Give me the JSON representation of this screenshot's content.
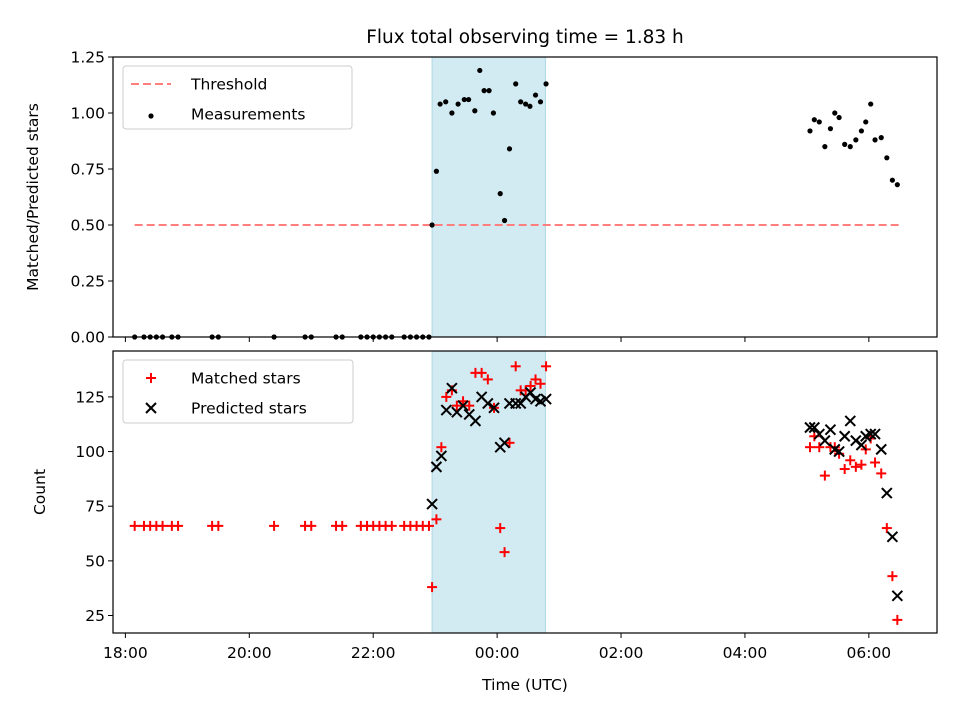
{
  "figure": {
    "title": "Flux total observing time = 1.83 h",
    "xlabel": "Time (UTC)"
  },
  "chart_data": [
    {
      "type": "scatter",
      "panel": "top",
      "ylabel": "Matched/Predicted stars",
      "xlim_hours": [
        -6.2,
        7.1
      ],
      "ylim": [
        0,
        1.25
      ],
      "yticks": [
        0.0,
        0.25,
        0.5,
        0.75,
        1.0,
        1.25
      ],
      "ytick_labels": [
        "0.00",
        "0.25",
        "0.50",
        "0.75",
        "1.00",
        "1.25"
      ],
      "legend": {
        "placement": "top-left",
        "entries": [
          "Threshold",
          "Measurements"
        ]
      },
      "threshold": {
        "name": "Threshold",
        "value": 0.5,
        "x_range_hours": [
          -5.85,
          6.5
        ],
        "color": "#ff7f7f"
      },
      "shaded_interval_hours": [
        -1.05,
        0.78
      ],
      "shade_color": "#add8e6",
      "series": [
        {
          "name": "Measurements",
          "color": "#000000",
          "marker": "dot",
          "points": [
            [
              -5.85,
              0
            ],
            [
              -5.7,
              0
            ],
            [
              -5.6,
              0
            ],
            [
              -5.5,
              0
            ],
            [
              -5.4,
              0
            ],
            [
              -5.25,
              0
            ],
            [
              -5.15,
              0
            ],
            [
              -4.6,
              0
            ],
            [
              -4.5,
              0
            ],
            [
              -3.6,
              0
            ],
            [
              -3.1,
              0
            ],
            [
              -3.0,
              0
            ],
            [
              -2.6,
              0
            ],
            [
              -2.5,
              0
            ],
            [
              -2.2,
              0
            ],
            [
              -2.1,
              0
            ],
            [
              -2.0,
              0
            ],
            [
              -1.9,
              0
            ],
            [
              -1.8,
              0
            ],
            [
              -1.7,
              0
            ],
            [
              -1.5,
              0
            ],
            [
              -1.4,
              0
            ],
            [
              -1.3,
              0
            ],
            [
              -1.2,
              0
            ],
            [
              -1.1,
              0
            ],
            [
              -1.05,
              0.5
            ],
            [
              -0.98,
              0.74
            ],
            [
              -0.92,
              1.04
            ],
            [
              -0.83,
              1.05
            ],
            [
              -0.73,
              1.0
            ],
            [
              -0.63,
              1.04
            ],
            [
              -0.53,
              1.06
            ],
            [
              -0.46,
              1.06
            ],
            [
              -0.36,
              1.01
            ],
            [
              -0.28,
              1.19
            ],
            [
              -0.21,
              1.1
            ],
            [
              -0.13,
              1.1
            ],
            [
              -0.06,
              1.0
            ],
            [
              0.05,
              0.64
            ],
            [
              0.12,
              0.52
            ],
            [
              0.2,
              0.84
            ],
            [
              0.3,
              1.13
            ],
            [
              0.38,
              1.05
            ],
            [
              0.46,
              1.04
            ],
            [
              0.53,
              1.03
            ],
            [
              0.62,
              1.08
            ],
            [
              0.7,
              1.05
            ],
            [
              0.79,
              1.13
            ],
            [
              5.05,
              0.92
            ],
            [
              5.12,
              0.97
            ],
            [
              5.2,
              0.96
            ],
            [
              5.29,
              0.85
            ],
            [
              5.38,
              0.93
            ],
            [
              5.45,
              1.0
            ],
            [
              5.52,
              0.98
            ],
            [
              5.61,
              0.86
            ],
            [
              5.7,
              0.85
            ],
            [
              5.79,
              0.88
            ],
            [
              5.88,
              0.92
            ],
            [
              5.95,
              0.96
            ],
            [
              6.03,
              1.04
            ],
            [
              6.1,
              0.88
            ],
            [
              6.2,
              0.89
            ],
            [
              6.29,
              0.8
            ],
            [
              6.38,
              0.7
            ],
            [
              6.46,
              0.68
            ]
          ]
        }
      ]
    },
    {
      "type": "scatter",
      "panel": "bottom",
      "ylabel": "Count",
      "xlim_hours": [
        -6.2,
        7.1
      ],
      "ylim": [
        17,
        146
      ],
      "yticks": [
        25,
        50,
        75,
        100,
        125
      ],
      "ytick_labels": [
        "25",
        "50",
        "75",
        "100",
        "125"
      ],
      "xticks_hours": [
        -6,
        -4,
        -2,
        0,
        2,
        4,
        6
      ],
      "xtick_labels": [
        "18:00",
        "20:00",
        "22:00",
        "00:00",
        "02:00",
        "04:00",
        "06:00"
      ],
      "legend": {
        "placement": "top-left",
        "entries": [
          "Matched stars",
          "Predicted stars"
        ]
      },
      "shaded_interval_hours": [
        -1.05,
        0.78
      ],
      "shade_color": "#add8e6",
      "series": [
        {
          "name": "Matched stars",
          "color": "#ff0000",
          "marker": "plus",
          "points": [
            [
              -5.85,
              66
            ],
            [
              -5.7,
              66
            ],
            [
              -5.6,
              66
            ],
            [
              -5.5,
              66
            ],
            [
              -5.4,
              66
            ],
            [
              -5.25,
              66
            ],
            [
              -5.15,
              66
            ],
            [
              -4.6,
              66
            ],
            [
              -4.5,
              66
            ],
            [
              -3.6,
              66
            ],
            [
              -3.1,
              66
            ],
            [
              -3.0,
              66
            ],
            [
              -2.6,
              66
            ],
            [
              -2.5,
              66
            ],
            [
              -2.2,
              66
            ],
            [
              -2.1,
              66
            ],
            [
              -2.0,
              66
            ],
            [
              -1.9,
              66
            ],
            [
              -1.8,
              66
            ],
            [
              -1.7,
              66
            ],
            [
              -1.5,
              66
            ],
            [
              -1.4,
              66
            ],
            [
              -1.3,
              66
            ],
            [
              -1.2,
              66
            ],
            [
              -1.1,
              66
            ],
            [
              -1.05,
              38
            ],
            [
              -0.98,
              69
            ],
            [
              -0.9,
              102
            ],
            [
              -0.82,
              125
            ],
            [
              -0.73,
              128
            ],
            [
              -0.65,
              121
            ],
            [
              -0.55,
              123
            ],
            [
              -0.45,
              121
            ],
            [
              -0.35,
              136
            ],
            [
              -0.25,
              136
            ],
            [
              -0.15,
              133
            ],
            [
              -0.05,
              120
            ],
            [
              0.05,
              65
            ],
            [
              0.12,
              54
            ],
            [
              0.2,
              104
            ],
            [
              0.3,
              139
            ],
            [
              0.38,
              128
            ],
            [
              0.46,
              128
            ],
            [
              0.54,
              130
            ],
            [
              0.62,
              133
            ],
            [
              0.7,
              131
            ],
            [
              0.79,
              139
            ],
            [
              5.05,
              102
            ],
            [
              5.12,
              107
            ],
            [
              5.2,
              102
            ],
            [
              5.29,
              89
            ],
            [
              5.38,
              102
            ],
            [
              5.45,
              102
            ],
            [
              5.52,
              99
            ],
            [
              5.61,
              92
            ],
            [
              5.7,
              96
            ],
            [
              5.79,
              93
            ],
            [
              5.88,
              94
            ],
            [
              5.95,
              101
            ],
            [
              6.03,
              106
            ],
            [
              6.1,
              95
            ],
            [
              6.2,
              90
            ],
            [
              6.29,
              65
            ],
            [
              6.38,
              43
            ],
            [
              6.46,
              23
            ]
          ]
        },
        {
          "name": "Predicted stars",
          "color": "#000000",
          "marker": "x",
          "points": [
            [
              -1.05,
              76
            ],
            [
              -0.98,
              93
            ],
            [
              -0.9,
              98
            ],
            [
              -0.82,
              119
            ],
            [
              -0.73,
              129
            ],
            [
              -0.65,
              118
            ],
            [
              -0.55,
              121
            ],
            [
              -0.45,
              117
            ],
            [
              -0.35,
              114
            ],
            [
              -0.25,
              125
            ],
            [
              -0.15,
              122
            ],
            [
              -0.05,
              120
            ],
            [
              0.05,
              102
            ],
            [
              0.12,
              104
            ],
            [
              0.2,
              122
            ],
            [
              0.3,
              122
            ],
            [
              0.38,
              122
            ],
            [
              0.46,
              125
            ],
            [
              0.54,
              127
            ],
            [
              0.62,
              124
            ],
            [
              0.7,
              123
            ],
            [
              0.79,
              124
            ],
            [
              5.05,
              111
            ],
            [
              5.12,
              111
            ],
            [
              5.2,
              108
            ],
            [
              5.29,
              105
            ],
            [
              5.38,
              110
            ],
            [
              5.45,
              101
            ],
            [
              5.52,
              100
            ],
            [
              5.61,
              107
            ],
            [
              5.7,
              114
            ],
            [
              5.79,
              105
            ],
            [
              5.88,
              103
            ],
            [
              5.95,
              107
            ],
            [
              6.03,
              108
            ],
            [
              6.1,
              108
            ],
            [
              6.2,
              101
            ],
            [
              6.29,
              81
            ],
            [
              6.38,
              61
            ],
            [
              6.46,
              34
            ]
          ]
        }
      ]
    }
  ]
}
